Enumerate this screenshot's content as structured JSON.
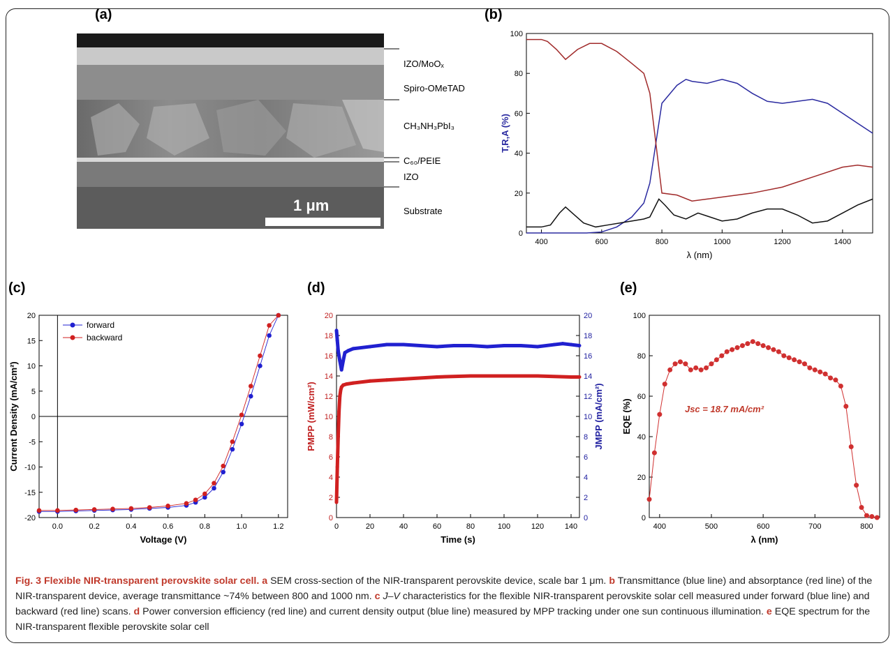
{
  "panel_labels": [
    "(a)",
    "(b)",
    "(c)",
    "(d)",
    "(e)"
  ],
  "sem": {
    "layers": [
      "IZO/MoOₓ",
      "Spiro-OMeTAD",
      "CH₃NH₃PbI₃",
      "C₆₀/PEIE",
      "IZO",
      "Substrate"
    ],
    "scale_label": "1 μm"
  },
  "caption": {
    "fig_title": "Fig. 3 Flexible NIR-transparent perovskite solar cell.",
    "a_key": "a",
    "a_text": " SEM cross-section of the NIR-transparent perovskite device, scale bar 1 μm. ",
    "b_key": "b",
    "b_text": " Transmittance (blue line) and absorptance (red line) of the NIR-transparent device, average transmittance ~74% between 800 and 1000 nm. ",
    "c_key": "c",
    "c_text_pre": " ",
    "c_jv": "J–V",
    "c_text": " characteristics for the flexible NIR-transparent perovskite solar cell measured under forward (blue line) and backward (red line) scans. ",
    "d_key": "d",
    "d_text": " Power conversion efficiency (red line) and current density output (blue line) measured by MPP tracking under one sun continuous illumination. ",
    "e_key": "e",
    "e_text": " EQE spectrum for the NIR-transparent flexible perovskite solar cell"
  },
  "chart_data": [
    {
      "id": "b",
      "type": "line",
      "xlabel": "λ (nm)",
      "ylabel": "T,R,A (%)",
      "xlim": [
        350,
        1500
      ],
      "ylim": [
        0,
        100
      ],
      "xticks": [
        400,
        600,
        800,
        1000,
        1200,
        1400
      ],
      "yticks": [
        0,
        20,
        40,
        60,
        80,
        100
      ],
      "series": [
        {
          "color": "#2a2aa0",
          "x": [
            350,
            550,
            600,
            650,
            700,
            740,
            760,
            780,
            800,
            850,
            880,
            900,
            950,
            1000,
            1050,
            1100,
            1150,
            1200,
            1250,
            1300,
            1350,
            1400,
            1450,
            1500
          ],
          "y": [
            0,
            0,
            0.5,
            3,
            8,
            15,
            25,
            45,
            65,
            74,
            77,
            76,
            75,
            77,
            75,
            70,
            66,
            65,
            66,
            67,
            65,
            60,
            55,
            50
          ]
        },
        {
          "color": "#a02a2a",
          "x": [
            350,
            400,
            420,
            450,
            480,
            520,
            560,
            600,
            650,
            700,
            740,
            760,
            780,
            800,
            850,
            900,
            950,
            1000,
            1100,
            1200,
            1300,
            1400,
            1450,
            1500
          ],
          "y": [
            97,
            97,
            96,
            92,
            87,
            92,
            95,
            95,
            91,
            85,
            80,
            70,
            45,
            20,
            19,
            16,
            17,
            18,
            20,
            23,
            28,
            33,
            34,
            33
          ]
        },
        {
          "color": "#111111",
          "x": [
            350,
            400,
            430,
            460,
            480,
            510,
            540,
            580,
            620,
            660,
            700,
            740,
            760,
            790,
            810,
            840,
            880,
            920,
            960,
            1000,
            1050,
            1100,
            1150,
            1200,
            1250,
            1300,
            1350,
            1400,
            1450,
            1500
          ],
          "y": [
            3,
            3,
            4,
            10,
            13,
            9,
            5,
            3,
            4,
            5,
            6,
            7,
            8,
            17,
            14,
            9,
            7,
            10,
            8,
            6,
            7,
            10,
            12,
            12,
            9,
            5,
            6,
            10,
            14,
            17
          ]
        }
      ]
    },
    {
      "id": "c",
      "type": "scatter",
      "xlabel": "Voltage (V)",
      "ylabel": "Current Density (mA/cm²)",
      "xlim": [
        -0.1,
        1.25
      ],
      "ylim": [
        -20,
        20
      ],
      "xticks": [
        0.0,
        0.2,
        0.4,
        0.6,
        0.8,
        1.0,
        1.2
      ],
      "yticks": [
        -20,
        -15,
        -10,
        -5,
        0,
        5,
        10,
        15,
        20
      ],
      "legend": "top-left",
      "series": [
        {
          "name": "forward",
          "color": "#2020d0",
          "x": [
            -0.1,
            0.0,
            0.1,
            0.2,
            0.3,
            0.4,
            0.5,
            0.6,
            0.7,
            0.75,
            0.8,
            0.85,
            0.9,
            0.95,
            1.0,
            1.05,
            1.1,
            1.15,
            1.2
          ],
          "y": [
            -18.8,
            -18.8,
            -18.7,
            -18.6,
            -18.5,
            -18.4,
            -18.2,
            -18.0,
            -17.6,
            -17.0,
            -16.0,
            -14.2,
            -11.0,
            -6.5,
            -1.5,
            4.0,
            10.0,
            16.0,
            20.0
          ]
        },
        {
          "name": "backward",
          "color": "#d02020",
          "x": [
            -0.1,
            0.0,
            0.1,
            0.2,
            0.3,
            0.4,
            0.5,
            0.6,
            0.7,
            0.75,
            0.8,
            0.85,
            0.9,
            0.95,
            1.0,
            1.05,
            1.1,
            1.15,
            1.2
          ],
          "y": [
            -18.6,
            -18.6,
            -18.5,
            -18.4,
            -18.3,
            -18.2,
            -18.0,
            -17.7,
            -17.2,
            -16.5,
            -15.3,
            -13.2,
            -9.8,
            -5.0,
            0.3,
            6.0,
            12.0,
            18.0,
            20.0
          ]
        }
      ]
    },
    {
      "id": "d",
      "type": "scatter",
      "xlabel": "Time (s)",
      "ylabel_left": "PMPP (mW/cm²)",
      "ylabel_right": "JMPP (mA/cm²)",
      "xlim": [
        0,
        145
      ],
      "ylim": [
        0,
        20
      ],
      "xticks": [
        0,
        20,
        40,
        60,
        80,
        100,
        120,
        140
      ],
      "yticks": [
        0,
        2,
        4,
        6,
        8,
        10,
        12,
        14,
        16,
        18,
        20
      ],
      "series": [
        {
          "color": "#d02020",
          "x": [
            0,
            0.5,
            1,
            1.5,
            2,
            2.5,
            3,
            4,
            6,
            10,
            20,
            30,
            40,
            60,
            80,
            100,
            120,
            140,
            145
          ],
          "y": [
            1.5,
            5,
            8,
            10.5,
            12,
            12.6,
            12.9,
            13.1,
            13.2,
            13.3,
            13.5,
            13.6,
            13.7,
            13.9,
            14.0,
            14.0,
            14.0,
            13.9,
            13.9
          ]
        },
        {
          "color": "#2020d0",
          "x": [
            0,
            0.5,
            1,
            2,
            3,
            4,
            5,
            7,
            10,
            20,
            30,
            40,
            50,
            60,
            70,
            80,
            90,
            100,
            110,
            120,
            130,
            135,
            140,
            145
          ],
          "y": [
            18.5,
            17.5,
            16.5,
            15.5,
            14.6,
            15.5,
            16.3,
            16.5,
            16.7,
            16.9,
            17.1,
            17.1,
            17.0,
            16.9,
            17.0,
            17.0,
            16.9,
            17.0,
            17.0,
            16.9,
            17.1,
            17.2,
            17.1,
            17.0
          ]
        }
      ]
    },
    {
      "id": "e",
      "type": "line",
      "xlabel": "λ (nm)",
      "ylabel": "EQE (%)",
      "xlim": [
        380,
        825
      ],
      "ylim": [
        0,
        100
      ],
      "xticks": [
        400,
        500,
        600,
        700,
        800
      ],
      "yticks": [
        0,
        20,
        40,
        60,
        80,
        100
      ],
      "annotation": "Jsc = 18.7 mA/cm²",
      "series": [
        {
          "color": "#d03030",
          "x": [
            380,
            390,
            400,
            410,
            420,
            430,
            440,
            450,
            460,
            470,
            480,
            490,
            500,
            510,
            520,
            530,
            540,
            550,
            560,
            570,
            580,
            590,
            600,
            610,
            620,
            630,
            640,
            650,
            660,
            670,
            680,
            690,
            700,
            710,
            720,
            730,
            740,
            750,
            760,
            770,
            780,
            790,
            800,
            810,
            820
          ],
          "y": [
            9,
            32,
            51,
            66,
            73,
            76,
            77,
            76,
            73,
            74,
            73,
            74,
            76,
            78,
            80,
            82,
            83,
            84,
            85,
            86,
            87,
            86,
            85,
            84,
            83,
            82,
            80,
            79,
            78,
            77,
            76,
            74,
            73,
            72,
            71,
            69,
            68,
            65,
            55,
            35,
            16,
            5,
            1,
            0.5,
            0
          ]
        }
      ]
    }
  ]
}
